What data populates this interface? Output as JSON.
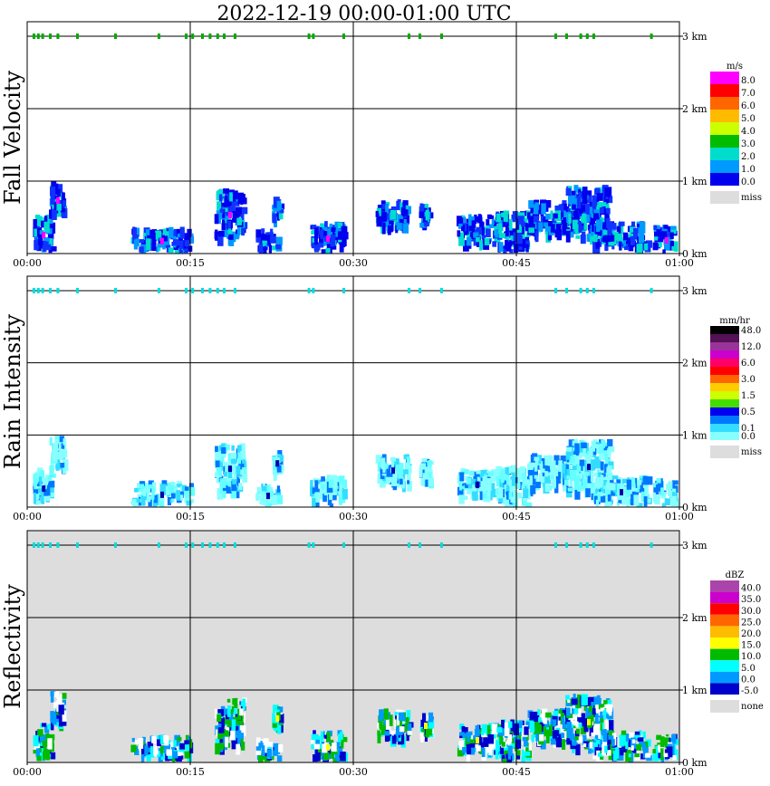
{
  "title": "2022-12-19   00:00-01:00 UTC",
  "chart_data": [
    {
      "type": "heatmap",
      "name": "Fall Velocity",
      "ylabel": "Fall Velocity",
      "x_ticks": [
        "00:00",
        "00:15",
        "00:30",
        "00:45",
        "01:00"
      ],
      "y_ticks": [
        "0 km",
        "1 km",
        "2 km",
        "3 km"
      ],
      "xlim": [
        "00:00",
        "01:00"
      ],
      "ylim_km": [
        0,
        3.2
      ],
      "grid": true,
      "background": "#ffffff",
      "colorbar": {
        "unit": "m/s",
        "labels": [
          "8.0",
          "7.0",
          "6.0",
          "5.0",
          "4.0",
          "3.0",
          "2.0",
          "1.0",
          "0.0"
        ],
        "colors": [
          "#ff00ff",
          "#ff0000",
          "#ff6600",
          "#ffbb00",
          "#ccff00",
          "#00bb00",
          "#00ddcc",
          "#0099ff",
          "#0000ee"
        ],
        "missing_label": "miss",
        "missing_color": "#dddddd"
      },
      "echo_colors": [
        "#0000ee",
        "#0000ee",
        "#1133ff",
        "#0099ff",
        "#00ddcc"
      ],
      "accent": "#ff00ff",
      "marker_color": "#00aa00"
    },
    {
      "type": "heatmap",
      "name": "Rain Intensity",
      "ylabel": "Rain Intensity",
      "x_ticks": [
        "00:00",
        "00:15",
        "00:30",
        "00:45",
        "01:00"
      ],
      "y_ticks": [
        "0 km",
        "1 km",
        "2 km",
        "3 km"
      ],
      "xlim": [
        "00:00",
        "01:00"
      ],
      "ylim_km": [
        0,
        3.2
      ],
      "grid": true,
      "background": "#ffffff",
      "colorbar": {
        "unit": "mm/hr",
        "labels": [
          "48.0",
          "",
          "12.0",
          "",
          "6.0",
          "",
          "3.0",
          "",
          "1.5",
          "",
          "0.5",
          "",
          "0.1",
          "0.0"
        ],
        "colors": [
          "#000000",
          "#551155",
          "#993399",
          "#cc00cc",
          "#ff0066",
          "#ff0000",
          "#ff6600",
          "#ffcc00",
          "#ccff00",
          "#44dd00",
          "#0000ee",
          "#0077ff",
          "#33ddff",
          "#88ffff"
        ],
        "missing_label": "miss",
        "missing_color": "#dddddd"
      },
      "echo_colors": [
        "#88ffff",
        "#88ffff",
        "#66ffff",
        "#33ddff",
        "#0077ff"
      ],
      "accent": "#0000aa",
      "marker_color": "#00dddd"
    },
    {
      "type": "heatmap",
      "name": "Reflectivity",
      "ylabel": "Reflectivity",
      "x_ticks": [
        "00:00",
        "00:15",
        "00:30",
        "00:45",
        "01:00"
      ],
      "y_ticks": [
        "0 km",
        "1 km",
        "2 km",
        "3 km"
      ],
      "xlim": [
        "00:00",
        "01:00"
      ],
      "ylim_km": [
        0,
        3.2
      ],
      "grid": true,
      "background": "#dddddd",
      "colorbar": {
        "unit": "dBZ",
        "labels": [
          "40.0",
          "35.0",
          "30.0",
          "25.0",
          "20.0",
          "15.0",
          "10.0",
          "5.0",
          "0.0",
          "-5.0"
        ],
        "colors": [
          "#aa44aa",
          "#cc00cc",
          "#ff0000",
          "#ff6600",
          "#ffbb00",
          "#ffff00",
          "#00bb00",
          "#00ffff",
          "#0099ff",
          "#0000cc"
        ],
        "missing_label": "none",
        "missing_color": "#dddddd"
      },
      "echo_colors": [
        "#ffffff",
        "#0000cc",
        "#0099ff",
        "#00ffff",
        "#00bb00"
      ],
      "accent": "#ffff00",
      "marker_color": "#00dddd"
    }
  ]
}
